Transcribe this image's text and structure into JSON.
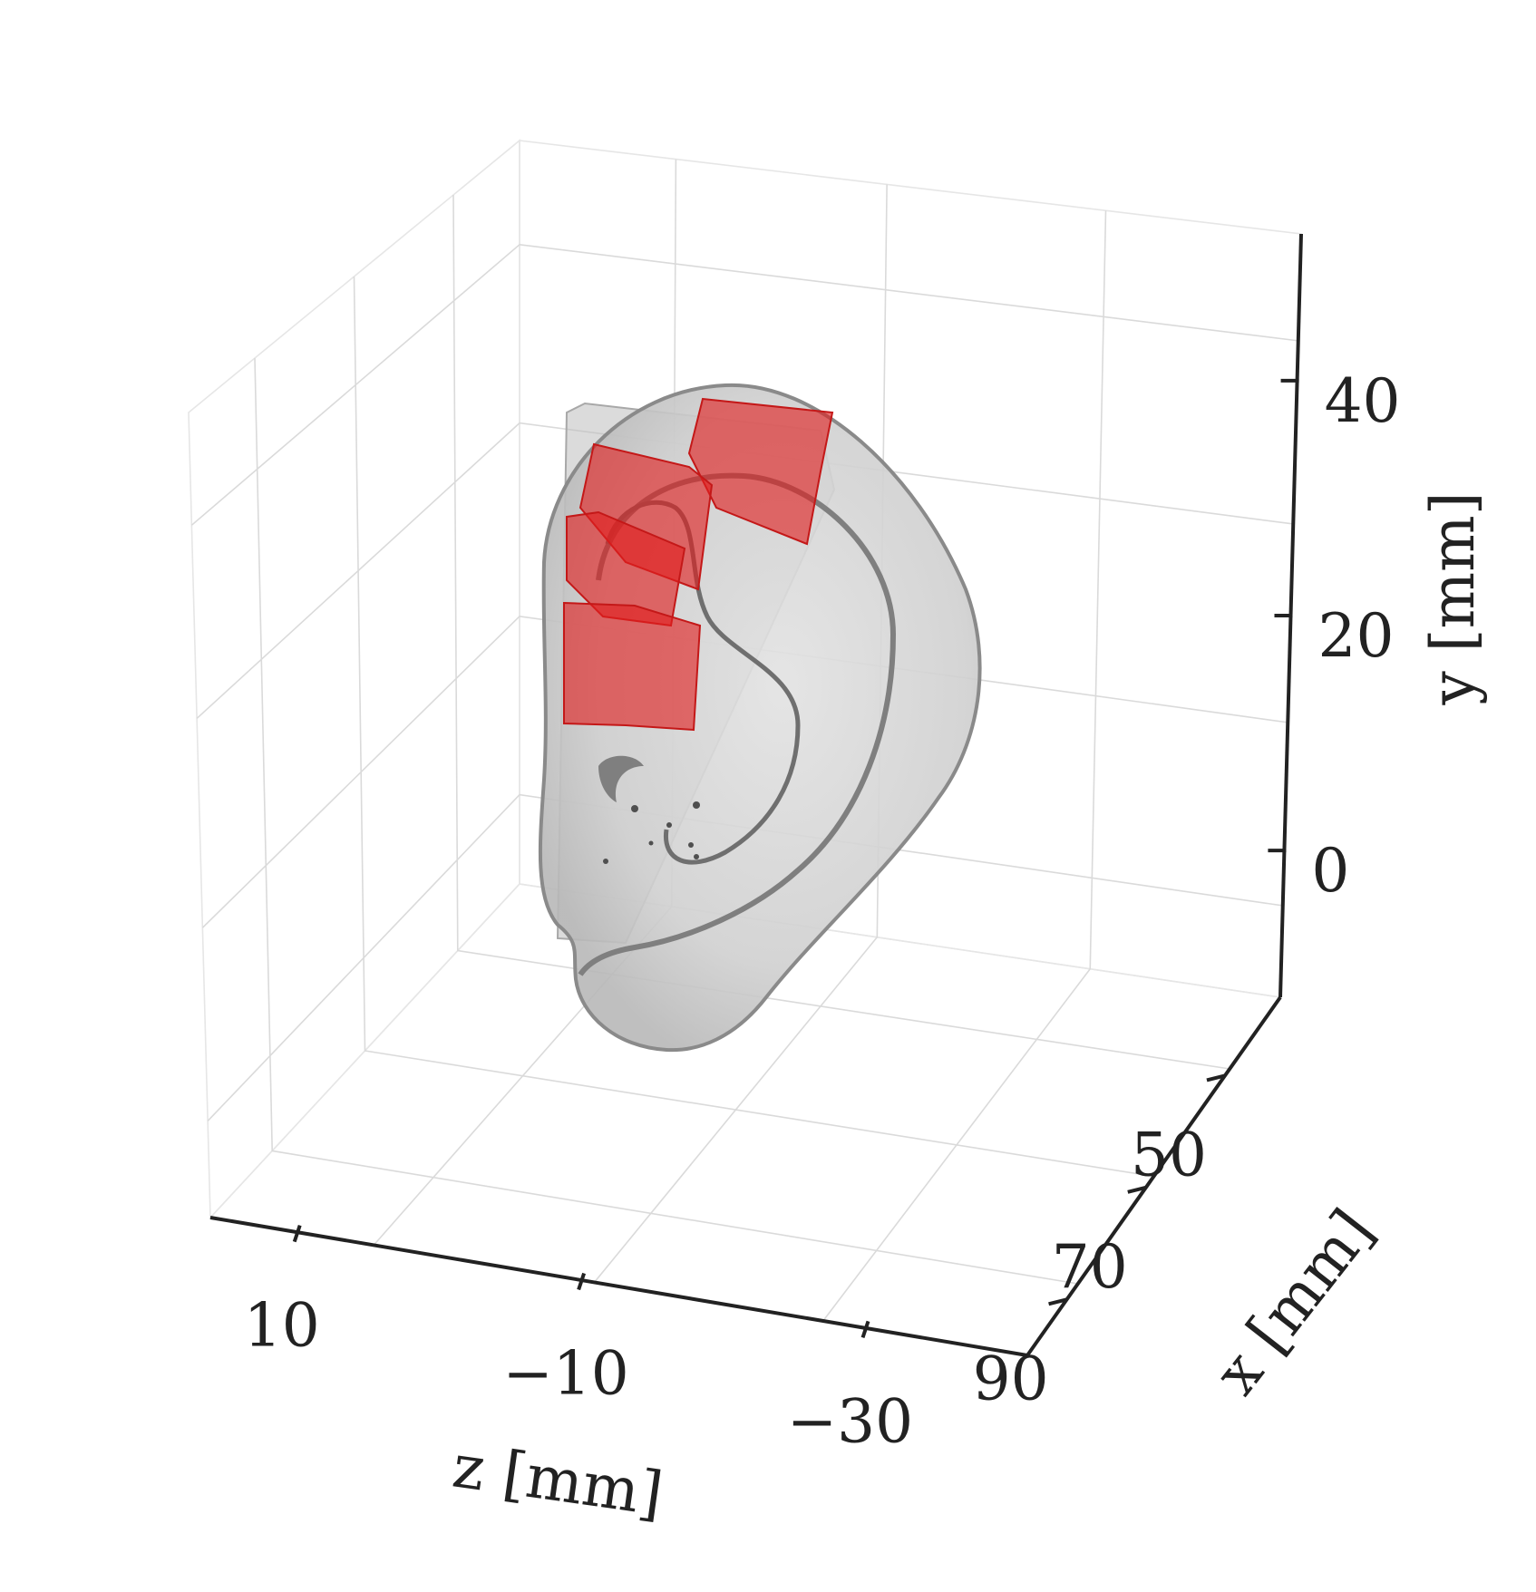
{
  "chart_data": {
    "type": "3d-surface",
    "axes": {
      "x": {
        "label": "x [mm]",
        "ticks": [
          50,
          70,
          90
        ],
        "tick_labels": [
          "50",
          "70",
          "90"
        ]
      },
      "y": {
        "label": "y [mm]",
        "ticks": [
          0,
          20,
          40
        ],
        "tick_labels": [
          "0",
          "20",
          "40"
        ]
      },
      "z": {
        "label": "z [mm]",
        "ticks": [
          10,
          -10,
          -30
        ],
        "tick_labels": [
          "10",
          "−10",
          "−30"
        ]
      }
    },
    "grid": true,
    "surfaces": [
      {
        "name": "ear",
        "color": "#9a9a9a",
        "opacity": 0.45
      },
      {
        "name": "highlighted-patches",
        "color": "#e01e1e",
        "opacity": 0.65
      }
    ]
  }
}
